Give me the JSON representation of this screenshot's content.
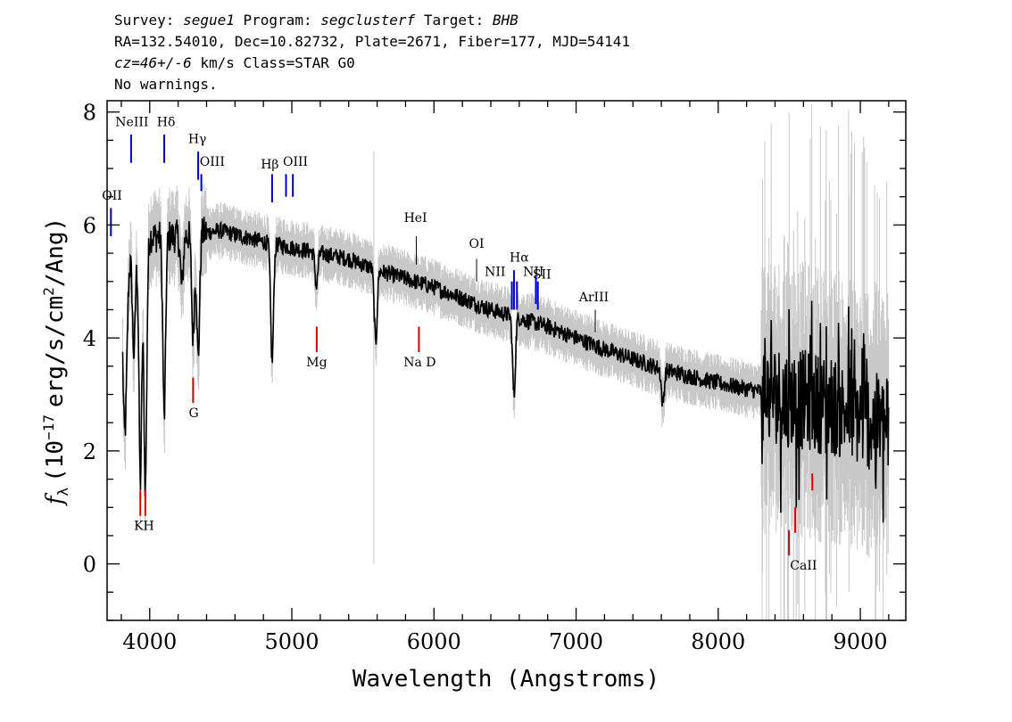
{
  "header": {
    "survey_label": "Survey:",
    "survey": "segue1",
    "program_label": "Program:",
    "program": "segclusterf",
    "target_label": "Target:",
    "target": "BHB",
    "line2": "RA=132.54010, Dec=10.82732, Plate=2671, Fiber=177, MJD=54141",
    "cz_value": "cz=46+/-6",
    "cz_rest": "km/s Class=STAR G0",
    "line4": "No warnings."
  },
  "chart_data": {
    "type": "line",
    "xlabel": "Wavelength (Angstroms)",
    "ylabel_prefix": "f",
    "ylabel_sub": "λ",
    "ylabel_main": "(10",
    "ylabel_exp": "−17",
    "ylabel_units": "erg/s/cm",
    "ylabel_sq": "2",
    "ylabel_end": "/Ang)",
    "xlim": [
      3700,
      9320
    ],
    "ylim": [
      -1.0,
      8.2
    ],
    "x_ticks": [
      4000,
      5000,
      6000,
      7000,
      8000,
      9000
    ],
    "y_ticks": [
      0,
      2,
      4,
      6,
      8
    ],
    "colors": {
      "spectrum": "#000000",
      "error_band": "#c8c8c8",
      "emission": "#0000cc",
      "absorption": "#dd0000",
      "marker": "#000000"
    },
    "continuum": [
      [
        3800,
        5.0
      ],
      [
        3900,
        5.6
      ],
      [
        4000,
        5.8
      ],
      [
        4200,
        5.8
      ],
      [
        4500,
        5.9
      ],
      [
        4800,
        5.7
      ],
      [
        5000,
        5.6
      ],
      [
        5400,
        5.4
      ],
      [
        5600,
        5.2
      ],
      [
        6000,
        4.9
      ],
      [
        6400,
        4.5
      ],
      [
        6800,
        4.2
      ],
      [
        7200,
        3.8
      ],
      [
        7600,
        3.45
      ],
      [
        8000,
        3.2
      ],
      [
        8400,
        3.0
      ],
      [
        8800,
        2.8
      ],
      [
        9200,
        2.4
      ]
    ],
    "absorption_dips": [
      {
        "x": 3820,
        "depth": 2.2
      },
      {
        "x": 3835,
        "depth": 1.5
      },
      {
        "x": 3889,
        "depth": 1.8
      },
      {
        "x": 3934,
        "depth": 4.2
      },
      {
        "x": 3969,
        "depth": 4.4
      },
      {
        "x": 4102,
        "depth": 3.2
      },
      {
        "x": 4226,
        "depth": 0.9
      },
      {
        "x": 4305,
        "depth": 1.8
      },
      {
        "x": 4341,
        "depth": 2.2
      },
      {
        "x": 4861,
        "depth": 2.1
      },
      {
        "x": 5173,
        "depth": 0.6
      },
      {
        "x": 5590,
        "depth": 1.3
      },
      {
        "x": 6563,
        "depth": 1.4
      },
      {
        "x": 7610,
        "depth": 0.6
      }
    ],
    "emission_lines": [
      {
        "label": "OII",
        "x": 3727,
        "y_top": 6.3,
        "y_bot": 5.8
      },
      {
        "label": "NeIII",
        "x": 3869,
        "y_top": 7.6,
        "y_bot": 7.1
      },
      {
        "label": "Hδ",
        "x": 4102,
        "y_top": 7.6,
        "y_bot": 7.1
      },
      {
        "label": "Hγ",
        "x": 4341,
        "y_top": 7.3,
        "y_bot": 6.8
      },
      {
        "label": "OIII",
        "x": 4363,
        "y_top": 6.9,
        "y_bot": 6.6
      },
      {
        "label": "Hβ",
        "x": 4861,
        "y_top": 6.9,
        "y_bot": 6.4
      },
      {
        "label": "OIII",
        "x": 4959,
        "y_top": 6.9,
        "y_bot": 6.5
      },
      {
        "label": "",
        "x": 5007,
        "y_top": 6.9,
        "y_bot": 6.5
      },
      {
        "label": "NII",
        "x": 6548,
        "y_top": 5.0,
        "y_bot": 4.5
      },
      {
        "label": "Hα",
        "x": 6563,
        "y_top": 5.2,
        "y_bot": 4.5
      },
      {
        "label": "",
        "x": 6584,
        "y_top": 5.0,
        "y_bot": 4.5
      },
      {
        "label": "NII",
        "x": 6717,
        "y_top": 5.1,
        "y_bot": 4.6
      },
      {
        "label": "SII",
        "x": 6731,
        "y_top": 5.0,
        "y_bot": 4.5
      }
    ],
    "marker_lines": [
      {
        "label": "HeI",
        "x": 5876,
        "y_top": 5.8,
        "y_bot": 5.3
      },
      {
        "label": "OI",
        "x": 6300,
        "y_top": 5.4,
        "y_bot": 5.0
      },
      {
        "label": "ArIII",
        "x": 7135,
        "y_top": 4.5,
        "y_bot": 4.1
      }
    ],
    "absorption_lines": [
      {
        "label": "K",
        "x": 3934,
        "y_top": 1.3,
        "y_bot": 0.85
      },
      {
        "label": "H",
        "x": 3969,
        "y_top": 1.3,
        "y_bot": 0.85
      },
      {
        "label": "G",
        "x": 4305,
        "y_top": 3.3,
        "y_bot": 2.85
      },
      {
        "label": "Mg",
        "x": 5175,
        "y_top": 4.2,
        "y_bot": 3.75
      },
      {
        "label": "Na D",
        "x": 5894,
        "y_top": 4.2,
        "y_bot": 3.75
      },
      {
        "label": "CaII",
        "x": 8498,
        "y_top": 0.6,
        "y_bot": 0.15
      },
      {
        "label": "",
        "x": 8542,
        "y_top": 1.0,
        "y_bot": 0.55
      },
      {
        "label": "",
        "x": 8662,
        "y_top": 1.6,
        "y_bot": 1.3
      }
    ],
    "line_labels": [
      {
        "text": "OII",
        "x": 3735,
        "y": 6.45
      },
      {
        "text": "NeIII",
        "x": 3875,
        "y": 7.75
      },
      {
        "text": "Hδ",
        "x": 4115,
        "y": 7.75
      },
      {
        "text": "Hγ",
        "x": 4335,
        "y": 7.45
      },
      {
        "text": "OIII",
        "x": 4440,
        "y": 7.05
      },
      {
        "text": "Hβ",
        "x": 4845,
        "y": 7.0
      },
      {
        "text": "OIII",
        "x": 5025,
        "y": 7.05
      },
      {
        "text": "HeI",
        "x": 5870,
        "y": 6.05
      },
      {
        "text": "OI",
        "x": 6300,
        "y": 5.6
      },
      {
        "text": "NII",
        "x": 6430,
        "y": 5.1
      },
      {
        "text": "Hα",
        "x": 6600,
        "y": 5.35
      },
      {
        "text": "NII",
        "x": 6700,
        "y": 5.1
      },
      {
        "text": "SII",
        "x": 6760,
        "y": 5.05
      },
      {
        "text": "ArIII",
        "x": 7125,
        "y": 4.65
      },
      {
        "text": "KH",
        "x": 3960,
        "y": 0.6
      },
      {
        "text": "G",
        "x": 4310,
        "y": 2.6
      },
      {
        "text": "Mg",
        "x": 5175,
        "y": 3.5
      },
      {
        "text": "Na D",
        "x": 5900,
        "y": 3.5
      },
      {
        "text": "CaII",
        "x": 8600,
        "y": -0.1
      }
    ]
  }
}
